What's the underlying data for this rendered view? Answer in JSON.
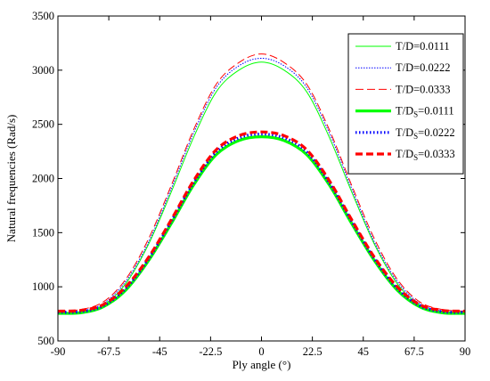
{
  "chart_data": {
    "type": "line",
    "title": "",
    "xlabel": "Ply angle (°)",
    "ylabel": "Natural frequencies (Rad/s)",
    "xlim": [
      -90,
      90
    ],
    "ylim": [
      500,
      3500
    ],
    "xticks": [
      -90,
      -67.5,
      -45,
      -22.5,
      0,
      22.5,
      45,
      67.5,
      90
    ],
    "xtick_labels": [
      "-90",
      "-67.5",
      "-45",
      "-22.5",
      "0",
      "22.5",
      "45",
      "67.5",
      "90"
    ],
    "yticks": [
      500,
      1000,
      1500,
      2000,
      2500,
      3000,
      3500
    ],
    "ytick_labels": [
      "500",
      "1000",
      "1500",
      "2000",
      "2500",
      "3000",
      "3500"
    ],
    "grid": false,
    "legend_position": "top-right",
    "x": [
      -90,
      -80,
      -70,
      -60,
      -50,
      -40,
      -30,
      -20,
      -10,
      0,
      10,
      20,
      30,
      40,
      50,
      60,
      70,
      80,
      90
    ],
    "series": [
      {
        "legend_main": "T/D=0.0111",
        "legend_sub": "",
        "legend_tail": "",
        "color": "#00ff00",
        "style": "solid",
        "width": "thin",
        "values": [
          755,
          765,
          830,
          1030,
          1390,
          1870,
          2380,
          2800,
          3000,
          3075,
          3000,
          2800,
          2380,
          1870,
          1390,
          1030,
          830,
          765,
          755
        ]
      },
      {
        "legend_main": "T/D=0.0222",
        "legend_sub": "",
        "legend_tail": "",
        "color": "#0000ff",
        "style": "dotted",
        "width": "thin",
        "values": [
          765,
          775,
          845,
          1050,
          1410,
          1900,
          2420,
          2840,
          3040,
          3110,
          3040,
          2840,
          2420,
          1900,
          1410,
          1050,
          845,
          775,
          765
        ]
      },
      {
        "legend_main": "T/D=0.0333",
        "legend_sub": "",
        "legend_tail": "",
        "color": "#ff0000",
        "style": "dashed",
        "width": "thin",
        "values": [
          775,
          790,
          860,
          1070,
          1440,
          1930,
          2450,
          2870,
          3070,
          3150,
          3070,
          2870,
          2450,
          1930,
          1440,
          1070,
          860,
          790,
          775
        ]
      },
      {
        "legend_main": "T/D",
        "legend_sub": "S",
        "legend_tail": "=0.0111",
        "color": "#00ff00",
        "style": "solid",
        "width": "thick",
        "values": [
          755,
          760,
          815,
          970,
          1240,
          1580,
          1940,
          2220,
          2350,
          2385,
          2350,
          2220,
          1940,
          1580,
          1240,
          970,
          815,
          760,
          755
        ]
      },
      {
        "legend_main": "T/D",
        "legend_sub": "S",
        "legend_tail": "=0.0222",
        "color": "#0000ff",
        "style": "dotted",
        "width": "thick",
        "values": [
          765,
          770,
          825,
          985,
          1255,
          1600,
          1960,
          2245,
          2375,
          2410,
          2375,
          2245,
          1960,
          1600,
          1255,
          985,
          825,
          770,
          765
        ]
      },
      {
        "legend_main": "T/D",
        "legend_sub": "S",
        "legend_tail": "=0.0333",
        "color": "#ff0000",
        "style": "dashed",
        "width": "thick",
        "values": [
          775,
          782,
          835,
          1000,
          1270,
          1615,
          1980,
          2265,
          2395,
          2430,
          2395,
          2265,
          1980,
          1615,
          1270,
          1000,
          835,
          782,
          775
        ]
      }
    ]
  }
}
